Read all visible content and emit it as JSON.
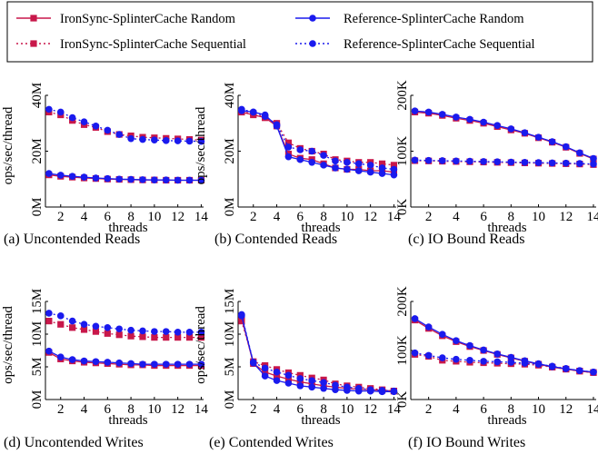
{
  "colors": {
    "ironsync": "#c8174a",
    "reference": "#1a1aee",
    "axis": "#000000"
  },
  "legend": [
    {
      "name": "IronSync-SplinterCache Random",
      "color": "#c8174a",
      "marker": "square",
      "dash": "solid"
    },
    {
      "name": "Reference-SplinterCache Random",
      "color": "#1a1aee",
      "marker": "circle",
      "dash": "solid"
    },
    {
      "name": "IronSync-SplinterCache Sequential",
      "color": "#c8174a",
      "marker": "square",
      "dash": "dotted"
    },
    {
      "name": "Reference-SplinterCache Sequential",
      "color": "#1a1aee",
      "marker": "circle",
      "dash": "dotted"
    }
  ],
  "chart_data": [
    {
      "type": "line",
      "caption": "(a) Uncontended Reads",
      "xlabel": "threads",
      "ylabel": "ops/sec/thread",
      "x": [
        1,
        2,
        3,
        4,
        5,
        6,
        7,
        8,
        9,
        10,
        11,
        12,
        13,
        14
      ],
      "xticks": [
        2,
        4,
        6,
        8,
        10,
        12,
        14
      ],
      "xticklabels": [
        "2",
        "4",
        "6",
        "8",
        "10",
        "12",
        "14"
      ],
      "ylim": [
        0,
        40000000
      ],
      "yticks": [
        0,
        20000000,
        40000000
      ],
      "yticklabels": [
        "0M",
        "20M",
        "40M"
      ],
      "series": [
        {
          "name": "IronSync-SplinterCache Random",
          "values": [
            11500000,
            11000000,
            10700000,
            10400000,
            10200000,
            10000000,
            9900000,
            9800000,
            9700000,
            9700000,
            9600000,
            9600000,
            9600000,
            9600000
          ]
        },
        {
          "name": "Reference-SplinterCache Random",
          "values": [
            12000000,
            11400000,
            11000000,
            10700000,
            10400000,
            10200000,
            10000000,
            9900000,
            9800000,
            9700000,
            9700000,
            9600000,
            9600000,
            9600000
          ]
        },
        {
          "name": "IronSync-SplinterCache Sequential",
          "values": [
            34000000,
            33000000,
            31000000,
            29500000,
            28500000,
            27000000,
            26000000,
            25500000,
            25000000,
            24800000,
            24600000,
            24400000,
            24200000,
            24000000
          ]
        },
        {
          "name": "Reference-SplinterCache Sequential",
          "values": [
            35000000,
            34000000,
            32000000,
            30500000,
            29000000,
            27500000,
            26000000,
            24500000,
            24200000,
            24000000,
            23800000,
            23700000,
            23600000,
            23500000
          ]
        }
      ]
    },
    {
      "type": "line",
      "caption": "(b) Contended Reads",
      "xlabel": "threads",
      "ylabel": "ops/sec/thread",
      "x": [
        1,
        2,
        3,
        4,
        5,
        6,
        7,
        8,
        9,
        10,
        11,
        12,
        13,
        14
      ],
      "xticks": [
        2,
        4,
        6,
        8,
        10,
        12,
        14
      ],
      "xticklabels": [
        "2",
        "4",
        "6",
        "8",
        "10",
        "12",
        "14"
      ],
      "ylim": [
        0,
        40000000
      ],
      "yticks": [
        0,
        20000000,
        40000000
      ],
      "yticklabels": [
        "0M",
        "20M",
        "40M"
      ],
      "series": [
        {
          "name": "IronSync-SplinterCache Random",
          "values": [
            34000000,
            33000000,
            32000000,
            29000000,
            19000000,
            17500000,
            17000000,
            15500000,
            14000000,
            13500000,
            13500000,
            13000000,
            13000000,
            12500000
          ]
        },
        {
          "name": "Reference-SplinterCache Random",
          "values": [
            34500000,
            34000000,
            33000000,
            29000000,
            18000000,
            17000000,
            16000000,
            15000000,
            14000000,
            13500000,
            13000000,
            12500000,
            12000000,
            11500000
          ]
        },
        {
          "name": "IronSync-SplinterCache Sequential",
          "values": [
            34000000,
            33500000,
            32000000,
            30000000,
            23000000,
            21000000,
            20000000,
            19000000,
            17000000,
            16500000,
            16000000,
            16000000,
            15500000,
            15000000
          ]
        },
        {
          "name": "Reference-SplinterCache Sequential",
          "values": [
            35000000,
            34000000,
            32500000,
            29500000,
            21500000,
            20500000,
            20000000,
            18500000,
            16500000,
            16000000,
            15500000,
            15000000,
            14000000,
            13500000
          ]
        }
      ]
    },
    {
      "type": "line",
      "caption": "(c) IO Bound Reads",
      "xlabel": "threads",
      "ylabel": "",
      "x": [
        1,
        2,
        3,
        4,
        5,
        6,
        7,
        8,
        9,
        10,
        11,
        12,
        13,
        14
      ],
      "xticks": [
        2,
        4,
        6,
        8,
        10,
        12,
        14
      ],
      "xticklabels": [
        "2",
        "4",
        "6",
        "8",
        "10",
        "12",
        "14"
      ],
      "ylim": [
        0,
        200000
      ],
      "yticks": [
        0,
        100000,
        200000
      ],
      "yticklabels": [
        "0K",
        "100K",
        "200K"
      ],
      "series": [
        {
          "name": "IronSync-SplinterCache Random",
          "values": [
            170000,
            168000,
            164000,
            159000,
            155000,
            150000,
            144000,
            138000,
            132000,
            124000,
            116000,
            107000,
            96000,
            86000
          ]
        },
        {
          "name": "Reference-SplinterCache Random",
          "values": [
            172000,
            170000,
            166000,
            161000,
            157000,
            152000,
            146000,
            140000,
            133000,
            125000,
            117000,
            108000,
            97000,
            87000
          ]
        },
        {
          "name": "IronSync-SplinterCache Sequential",
          "values": [
            83000,
            82500,
            82000,
            81500,
            81000,
            80500,
            80000,
            79500,
            79000,
            78500,
            78000,
            77500,
            77000,
            76000
          ]
        },
        {
          "name": "Reference-SplinterCache Sequential",
          "values": [
            84000,
            83500,
            83000,
            82500,
            82000,
            81500,
            81000,
            80500,
            80000,
            79500,
            79000,
            78500,
            78000,
            77000
          ]
        }
      ]
    },
    {
      "type": "line",
      "caption": "(d) Uncontended Writes",
      "xlabel": "threads",
      "ylabel": "ops/sec/thread",
      "x": [
        1,
        2,
        3,
        4,
        5,
        6,
        7,
        8,
        9,
        10,
        11,
        12,
        13,
        14
      ],
      "xticks": [
        2,
        4,
        6,
        8,
        10,
        12,
        14
      ],
      "xticklabels": [
        "2",
        "4",
        "6",
        "8",
        "10",
        "12",
        "14"
      ],
      "ylim": [
        0,
        15000000
      ],
      "yticks": [
        0,
        5000000,
        10000000,
        15000000
      ],
      "yticklabels": [
        "0M",
        "5M",
        "10M",
        "15M"
      ],
      "series": [
        {
          "name": "IronSync-SplinterCache Random",
          "values": [
            7200000,
            6200000,
            5900000,
            5700000,
            5600000,
            5500000,
            5400000,
            5300000,
            5300000,
            5200000,
            5200000,
            5200000,
            5200000,
            5200000
          ]
        },
        {
          "name": "Reference-SplinterCache Random",
          "values": [
            7400000,
            6500000,
            6100000,
            5900000,
            5800000,
            5700000,
            5600000,
            5500000,
            5400000,
            5400000,
            5400000,
            5400000,
            5400000,
            5400000
          ]
        },
        {
          "name": "IronSync-SplinterCache Sequential",
          "values": [
            12000000,
            11500000,
            11000000,
            10700000,
            10400000,
            10100000,
            9900000,
            9700000,
            9600000,
            9500000,
            9500000,
            9500000,
            9500000,
            9500000
          ]
        },
        {
          "name": "Reference-SplinterCache Sequential",
          "values": [
            13200000,
            12800000,
            12000000,
            11500000,
            11200000,
            11000000,
            10800000,
            10600000,
            10500000,
            10400000,
            10400000,
            10300000,
            10300000,
            10300000
          ]
        }
      ]
    },
    {
      "type": "line",
      "caption": "(e) Contended Writes",
      "xlabel": "threads",
      "ylabel": "ops/sec/thread",
      "x": [
        1,
        2,
        3,
        4,
        5,
        6,
        7,
        8,
        9,
        10,
        11,
        12,
        13,
        14
      ],
      "xticks": [
        2,
        4,
        6,
        8,
        10,
        12,
        14
      ],
      "xticklabels": [
        "2",
        "4",
        "6",
        "8",
        "10",
        "12",
        "14"
      ],
      "ylim": [
        0,
        15000000
      ],
      "yticks": [
        0,
        5000000,
        10000000,
        15000000
      ],
      "yticklabels": [
        "0M",
        "5M",
        "10M",
        "15M"
      ],
      "series": [
        {
          "name": "IronSync-SplinterCache Random",
          "values": [
            12500000,
            5500000,
            4200000,
            3600000,
            3100000,
            2700000,
            2400000,
            2100000,
            1900000,
            1700000,
            1600000,
            1500000,
            1400000,
            1300000
          ]
        },
        {
          "name": "Reference-SplinterCache Random",
          "values": [
            12800000,
            5600000,
            3600000,
            2900000,
            2500000,
            2100000,
            1900000,
            1700000,
            1500000,
            1400000,
            1300000,
            1300000,
            1200000,
            1200000
          ]
        },
        {
          "name": "IronSync-SplinterCache Sequential",
          "values": [
            12000000,
            5800000,
            5200000,
            4600000,
            4100000,
            3700000,
            3300000,
            3000000,
            2400000,
            2100000,
            1900000,
            1700000,
            1500000,
            1300000
          ]
        },
        {
          "name": "Reference-SplinterCache Sequential",
          "values": [
            13000000,
            5700000,
            4800000,
            4200000,
            3700000,
            3200000,
            2900000,
            2600000,
            2200000,
            1900000,
            1700000,
            1500000,
            1400000,
            1300000
          ]
        }
      ]
    },
    {
      "type": "line",
      "caption": "(f) IO Bound Writes",
      "xlabel": "threads",
      "ylabel": "",
      "x": [
        1,
        2,
        3,
        4,
        5,
        6,
        7,
        8,
        9,
        10,
        11,
        12,
        13,
        14
      ],
      "xticks": [
        2,
        4,
        6,
        8,
        10,
        12,
        14
      ],
      "xticklabels": [
        "2",
        "4",
        "6",
        "8",
        "10",
        "12",
        "14"
      ],
      "ylim": [
        0,
        200000
      ],
      "yticks": [
        0,
        100000,
        200000
      ],
      "yticklabels": [
        "0K",
        "100K",
        "200K"
      ],
      "series": [
        {
          "name": "IronSync-SplinterCache Random",
          "values": [
            162000,
            145000,
            130000,
            118000,
            108000,
            100000,
            92000,
            85000,
            78000,
            72000,
            66000,
            62000,
            58000,
            55000
          ]
        },
        {
          "name": "Reference-SplinterCache Random",
          "values": [
            165000,
            148000,
            133000,
            120000,
            110000,
            101000,
            93000,
            86000,
            79000,
            73000,
            67000,
            63000,
            59000,
            56000
          ]
        },
        {
          "name": "IronSync-SplinterCache Sequential",
          "values": [
            92000,
            88000,
            80000,
            78000,
            76000,
            75000,
            74000,
            73000,
            72000,
            70000,
            66000,
            62000,
            58000,
            55000
          ]
        },
        {
          "name": "Reference-SplinterCache Sequential",
          "values": [
            95000,
            90000,
            85000,
            82000,
            80000,
            78000,
            77000,
            76000,
            74000,
            72000,
            68000,
            63000,
            59000,
            56000
          ]
        }
      ]
    }
  ]
}
